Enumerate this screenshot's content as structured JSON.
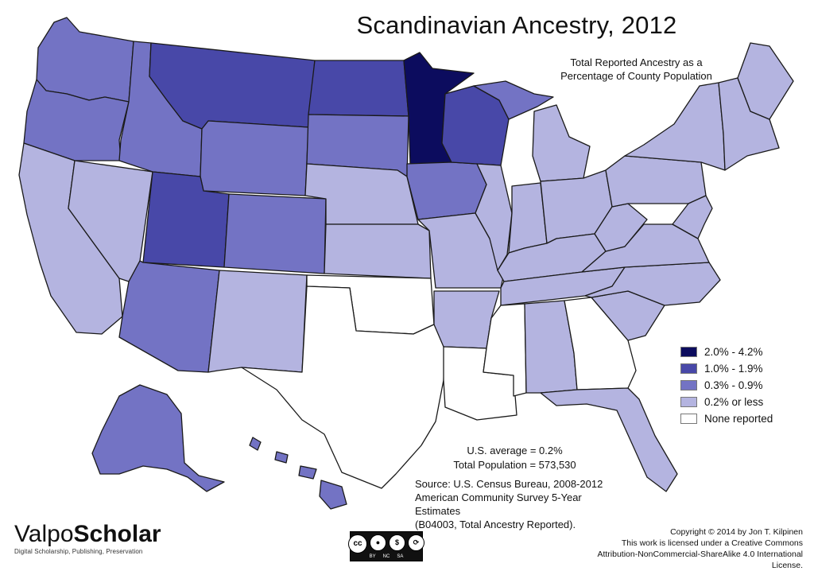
{
  "title": "Scandinavian Ancestry, 2012",
  "subtitle_lines": [
    "Total Reported Ancestry as a",
    "Percentage of County Population"
  ],
  "legend": [
    {
      "label": "2.0% - 4.2%",
      "color": "#0c0c5e"
    },
    {
      "label": "1.0% - 1.9%",
      "color": "#4848a8"
    },
    {
      "label": "0.3% - 0.9%",
      "color": "#7373c4"
    },
    {
      "label": "0.2% or less",
      "color": "#b4b4e0"
    },
    {
      "label": "None reported",
      "color": "#ffffff"
    }
  ],
  "stats": {
    "us_average": "U.S. average = 0.2%",
    "total_population": "Total Population = 573,530"
  },
  "source_lines": [
    "Source:  U.S. Census Bureau, 2008-2012",
    "American Community Survey 5-Year Estimates",
    "(B04003, Total Ancestry Reported)."
  ],
  "logo": {
    "part1": "Valpo",
    "part2": "Scholar",
    "tagline": "Digital Scholarship, Publishing, Preservation"
  },
  "cc_badge": {
    "cc": "cc",
    "labels": [
      "BY",
      "NC",
      "SA"
    ]
  },
  "copyright_lines": [
    "Copyright © 2014 by Jon T. Kilpinen",
    "This work is licensed under a Creative Commons",
    "Attribution-NonCommercial-ShareAlike 4.0 International License."
  ],
  "regions": [
    {
      "name": "washington",
      "level": 2
    },
    {
      "name": "oregon",
      "level": 2
    },
    {
      "name": "california",
      "level": 3
    },
    {
      "name": "nevada",
      "level": 3
    },
    {
      "name": "idaho",
      "level": 2
    },
    {
      "name": "montana",
      "level": 1
    },
    {
      "name": "wyoming",
      "level": 2
    },
    {
      "name": "utah",
      "level": 1
    },
    {
      "name": "arizona",
      "level": 2
    },
    {
      "name": "colorado",
      "level": 2
    },
    {
      "name": "new-mexico",
      "level": 3
    },
    {
      "name": "north-dakota",
      "level": 1
    },
    {
      "name": "south-dakota",
      "level": 2
    },
    {
      "name": "nebraska",
      "level": 3
    },
    {
      "name": "kansas",
      "level": 3
    },
    {
      "name": "oklahoma",
      "level": 4
    },
    {
      "name": "texas",
      "level": 4
    },
    {
      "name": "minnesota",
      "level": 0
    },
    {
      "name": "iowa",
      "level": 2
    },
    {
      "name": "missouri",
      "level": 3
    },
    {
      "name": "arkansas",
      "level": 3
    },
    {
      "name": "louisiana",
      "level": 4
    },
    {
      "name": "wisconsin",
      "level": 1
    },
    {
      "name": "illinois",
      "level": 3
    },
    {
      "name": "michigan-upper",
      "level": 2
    },
    {
      "name": "michigan-lower",
      "level": 3
    },
    {
      "name": "indiana",
      "level": 3
    },
    {
      "name": "ohio",
      "level": 3
    },
    {
      "name": "kentucky",
      "level": 3
    },
    {
      "name": "tennessee",
      "level": 3
    },
    {
      "name": "mississippi",
      "level": 4
    },
    {
      "name": "alabama",
      "level": 3
    },
    {
      "name": "georgia",
      "level": 4
    },
    {
      "name": "florida",
      "level": 3
    },
    {
      "name": "south-carolina",
      "level": 3
    },
    {
      "name": "north-carolina",
      "level": 3
    },
    {
      "name": "virginia",
      "level": 3
    },
    {
      "name": "west-virginia",
      "level": 3
    },
    {
      "name": "pennsylvania",
      "level": 3
    },
    {
      "name": "new-york",
      "level": 3
    },
    {
      "name": "new-england",
      "level": 3
    },
    {
      "name": "maine",
      "level": 3
    },
    {
      "name": "alaska",
      "level": 2
    },
    {
      "name": "hawaii",
      "level": 2
    }
  ]
}
